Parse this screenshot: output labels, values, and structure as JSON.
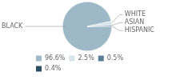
{
  "chart_data": {
    "type": "pie",
    "categories": [
      "BLACK",
      "WHITE",
      "ASIAN",
      "HISPANIC"
    ],
    "values": [
      96.6,
      2.5,
      0.5,
      0.4
    ],
    "value_labels": [
      "96.6%",
      "2.5%",
      "0.5%",
      "0.4%"
    ],
    "colors": [
      "#9db8c7",
      "#d6e4eb",
      "#5a7f96",
      "#2c4f64"
    ],
    "legend": "bottom"
  }
}
